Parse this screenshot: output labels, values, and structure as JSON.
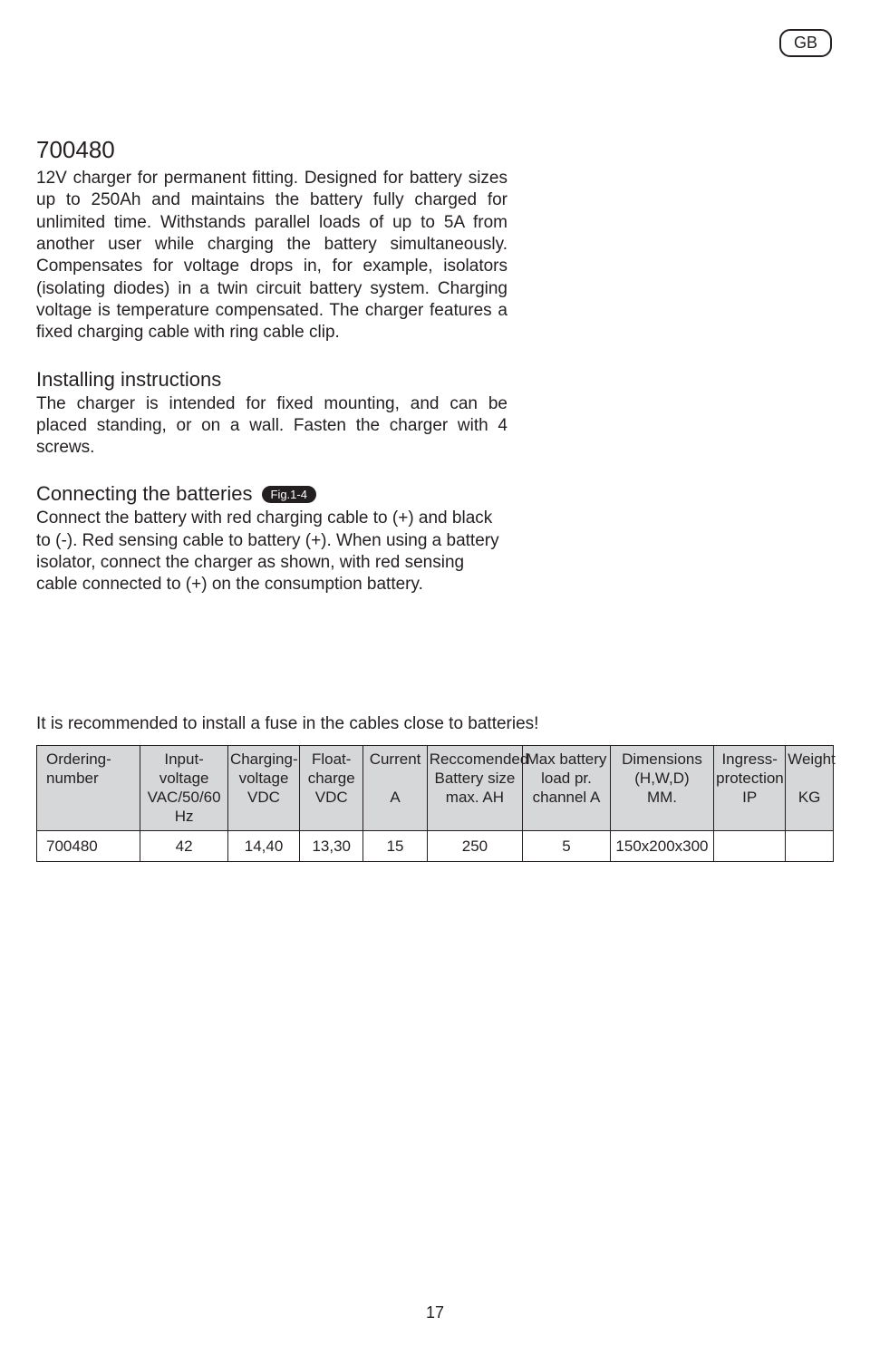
{
  "badge": "GB",
  "product_code": "700480",
  "intro": "12V charger for permanent fitting. Designed for battery sizes up to 250Ah and maintains the battery fully charged for unlimited time. Withstands parallel loads of up to 5A from another user while charging the battery simultaneously. Compensates for voltage drops in, for example, isolators (isolating diodes) in a twin circuit battery system. Charging voltage is temperature compensated. The charger features a fixed charging cable with ring cable clip.",
  "installing_title": "Installing instructions",
  "installing_body": "The charger is intended for fixed mounting, and can be placed standing, or on a wall. Fasten the charger with 4 screws.",
  "connecting_title": "Connecting the batteries",
  "fig_label": "Fig.1-4",
  "connecting_body": "Connect the battery with red charging cable to (+) and black to (-). Red sensing cable to battery (+). When using a battery isolator, connect the charger as shown, with red sensing cable connected to (+) on the consumption battery.",
  "fuse_note": "It is recommended to install a fuse in the cables close to batteries!",
  "table": {
    "columns": [
      {
        "l1": "Ordering-",
        "l2": "number",
        "l3": "",
        "width": "13%"
      },
      {
        "l1": "Input-",
        "l2": "voltage",
        "l3": "VAC/50/60 Hz",
        "width": "11%"
      },
      {
        "l1": "Charging-",
        "l2": "voltage",
        "l3": "VDC",
        "width": "9%"
      },
      {
        "l1": "Float-",
        "l2": "charge",
        "l3": "VDC",
        "width": "8%"
      },
      {
        "l1": "Current",
        "l2": "",
        "l3": "A",
        "width": "8%"
      },
      {
        "l1": "Reccomended",
        "l2": "Battery size",
        "l3": "max. AH",
        "width": "12%"
      },
      {
        "l1": "Max battery",
        "l2": "load pr.",
        "l3": "channel A",
        "width": "11%"
      },
      {
        "l1": "Dimensions",
        "l2": "(H,W,D)",
        "l3": "MM.",
        "width": "13%"
      },
      {
        "l1": "Ingress-",
        "l2": "protection",
        "l3": "IP",
        "width": "9%"
      },
      {
        "l1": "Weight",
        "l2": "",
        "l3": "KG",
        "width": "6%"
      }
    ],
    "row": [
      "700480",
      "42",
      "14,40",
      "13,30",
      "15",
      "250",
      "5",
      "150x200x300",
      "",
      ""
    ]
  },
  "page_number": "17"
}
